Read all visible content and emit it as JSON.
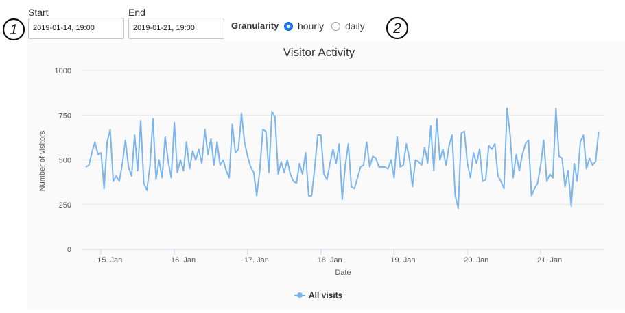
{
  "controls": {
    "start_label": "Start",
    "start_value": "2019-01-14, 19:00",
    "end_label": "End",
    "end_value": "2019-01-21, 19:00",
    "granularity_label": "Granularity",
    "granularity_options": [
      "hourly",
      "daily"
    ],
    "granularity_selected": "hourly",
    "step_markers": [
      "1",
      "2"
    ]
  },
  "chart_data": {
    "type": "line",
    "title": "Visitor Activity",
    "xlabel": "Date",
    "ylabel": "Number of visitors",
    "ylim": [
      0,
      1000
    ],
    "yticks": [
      0,
      250,
      500,
      750,
      1000
    ],
    "xticks": [
      "15. Jan",
      "16. Jan",
      "17. Jan",
      "18. Jan",
      "19. Jan",
      "20. Jan",
      "21. Jan"
    ],
    "x_start": "2019-01-14, 19:00",
    "x_step": "1 hour",
    "grid": true,
    "legend_position": "bottom-center",
    "series": [
      {
        "name": "All visits",
        "color": "#7cb5ec",
        "values": [
          460,
          470,
          540,
          600,
          530,
          540,
          340,
          600,
          670,
          380,
          410,
          380,
          480,
          610,
          460,
          410,
          640,
          440,
          720,
          370,
          330,
          460,
          730,
          390,
          500,
          400,
          630,
          490,
          400,
          710,
          430,
          500,
          440,
          600,
          450,
          550,
          500,
          560,
          480,
          670,
          530,
          620,
          470,
          600,
          470,
          500,
          440,
          400,
          700,
          540,
          560,
          760,
          600,
          520,
          460,
          430,
          300,
          440,
          670,
          660,
          430,
          770,
          740,
          420,
          490,
          430,
          500,
          420,
          380,
          370,
          480,
          420,
          540,
          300,
          300,
          460,
          640,
          640,
          420,
          390,
          480,
          560,
          480,
          590,
          280,
          470,
          590,
          350,
          340,
          400,
          460,
          470,
          600,
          460,
          520,
          510,
          460,
          460,
          460,
          450,
          500,
          400,
          630,
          460,
          470,
          590,
          510,
          350,
          500,
          490,
          470,
          570,
          480,
          690,
          440,
          730,
          500,
          560,
          470,
          580,
          640,
          300,
          230,
          650,
          660,
          480,
          400,
          540,
          480,
          560,
          380,
          390,
          580,
          560,
          590,
          410,
          380,
          340,
          790,
          640,
          400,
          530,
          440,
          530,
          590,
          610,
          300,
          340,
          370,
          470,
          610,
          380,
          420,
          400,
          790,
          520,
          510,
          350,
          440,
          240,
          480,
          380,
          600,
          640,
          450,
          510,
          470,
          490,
          660
        ]
      }
    ]
  }
}
